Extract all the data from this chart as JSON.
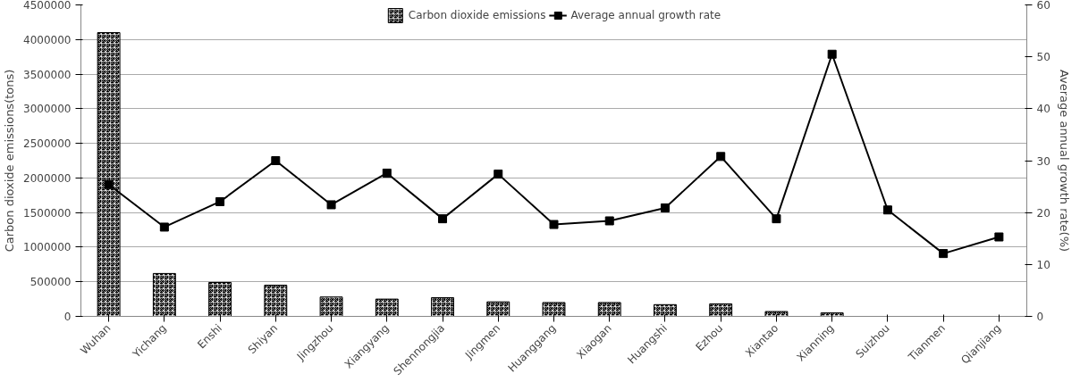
{
  "chart_data": {
    "type": "bar",
    "categories": [
      "Wuhan",
      "Yichang",
      "Enshi",
      "Shiyan",
      "Jingzhou",
      "Xiangyang",
      "Shennongjia",
      "Jingmen",
      "Huanggang",
      "Xiaogan",
      "Huangshi",
      "Ezhou",
      "Xiantao",
      "Xianning",
      "Suizhou",
      "Tianmen",
      "Qianjiang"
    ],
    "series": [
      {
        "name": "Carbon dioxide emissions",
        "color": "#000000",
        "values": [
          4100000,
          620000,
          490000,
          450000,
          280000,
          250000,
          270000,
          210000,
          200000,
          200000,
          170000,
          180000,
          70000,
          50000,
          null,
          null,
          null
        ]
      },
      {
        "name": "Average annual growth rate",
        "type": "line",
        "axis": "y2",
        "color": "#000000",
        "values": [
          25.4,
          17.2,
          22.1,
          30.0,
          21.5,
          27.6,
          18.8,
          27.4,
          17.7,
          18.4,
          20.9,
          30.8,
          18.8,
          50.5,
          20.5,
          12.1,
          15.3
        ]
      }
    ],
    "ylabel": "Carbon dioxide emissions(tons)",
    "y2label": "Average annual growth rate(%)",
    "ylim": [
      0,
      4500000
    ],
    "yticks": [
      0,
      500000,
      1000000,
      1500000,
      2000000,
      2500000,
      3000000,
      3500000,
      4000000,
      4500000
    ],
    "y2lim": [
      0,
      60
    ],
    "y2ticks": [
      0,
      10,
      20,
      30,
      40,
      50,
      60
    ],
    "grid": "y",
    "legend": "top",
    "marker": "square",
    "line_style": "solid"
  }
}
